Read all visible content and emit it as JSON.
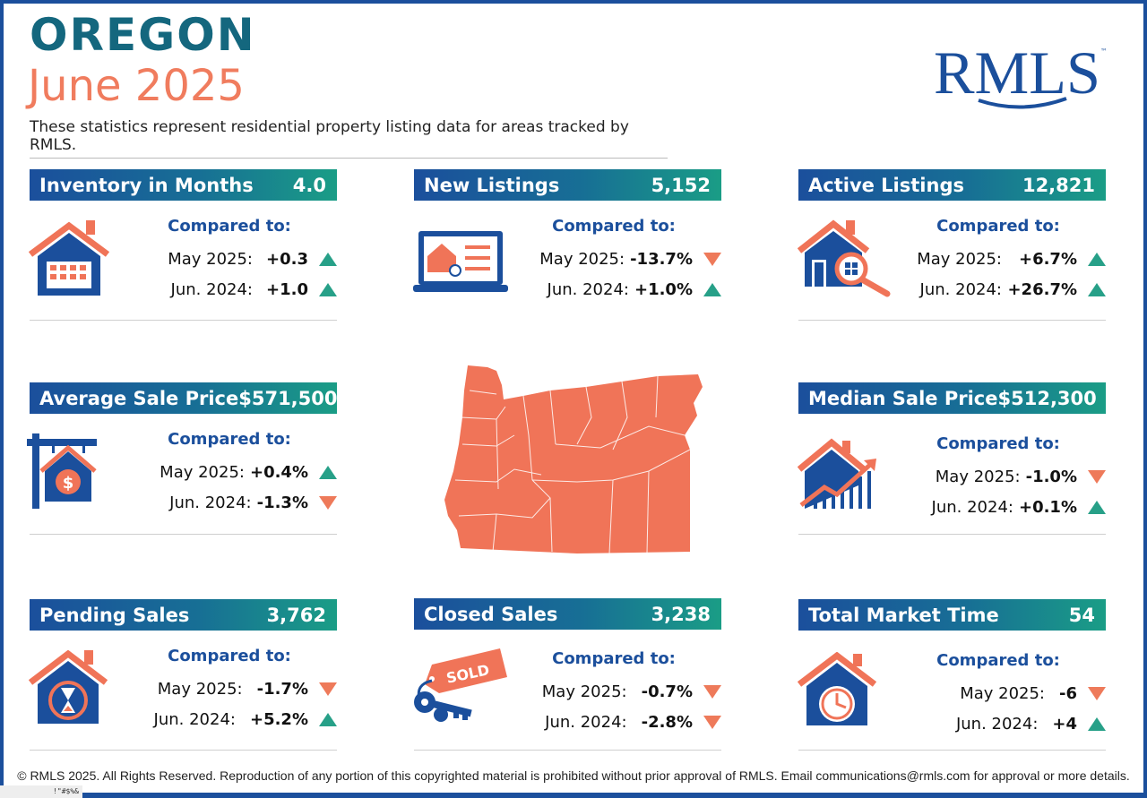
{
  "header": {
    "title": "OREGON",
    "subtitle": "June 2025",
    "description": "These statistics represent residential property listing data for areas tracked by RMLS.",
    "logo_text": "RMLS",
    "trademark": "™"
  },
  "compared_label": "Compared to:",
  "cards": {
    "inventory": {
      "label": "Inventory in Months",
      "value": "4.0",
      "icon": "house-calendar-icon",
      "rows": [
        {
          "period": "May 2025:",
          "change": "+0.3",
          "dir": "up"
        },
        {
          "period": "Jun. 2024:",
          "change": "+1.0",
          "dir": "up"
        }
      ]
    },
    "new_listings": {
      "label": "New Listings",
      "value": "5,152",
      "icon": "laptop-listing-icon",
      "rows": [
        {
          "period": "May 2025:",
          "change": "-13.7%",
          "dir": "down"
        },
        {
          "period": "Jun. 2024:",
          "change": "+1.0%",
          "dir": "up"
        }
      ]
    },
    "active_listings": {
      "label": "Active Listings",
      "value": "12,821",
      "icon": "house-magnifier-icon",
      "rows": [
        {
          "period": "May 2025:",
          "change": "+6.7%",
          "dir": "up"
        },
        {
          "period": "Jun. 2024:",
          "change": "+26.7%",
          "dir": "up"
        }
      ]
    },
    "average_sale_price": {
      "label": "Average Sale Price",
      "value": "$571,500",
      "icon": "sale-sign-icon",
      "rows": [
        {
          "period": "May 2025:",
          "change": "+0.4%",
          "dir": "up"
        },
        {
          "period": "Jun. 2024:",
          "change": "-1.3%",
          "dir": "down"
        }
      ]
    },
    "median_sale_price": {
      "label": "Median Sale Price",
      "value": "$512,300",
      "icon": "house-growth-chart-icon",
      "rows": [
        {
          "period": "May 2025:",
          "change": "-1.0%",
          "dir": "down"
        },
        {
          "period": "Jun. 2024:",
          "change": "+0.1%",
          "dir": "up"
        }
      ]
    },
    "pending_sales": {
      "label": "Pending Sales",
      "value": "3,762",
      "icon": "house-hourglass-icon",
      "rows": [
        {
          "period": "May 2025:",
          "change": "-1.7%",
          "dir": "down"
        },
        {
          "period": "Jun. 2024:",
          "change": "+5.2%",
          "dir": "up"
        }
      ]
    },
    "closed_sales": {
      "label": "Closed Sales",
      "value": "3,238",
      "icon": "sold-tag-keys-icon",
      "tag_text": "SOLD",
      "rows": [
        {
          "period": "May 2025:",
          "change": "-0.7%",
          "dir": "down"
        },
        {
          "period": "Jun. 2024:",
          "change": "-2.8%",
          "dir": "down"
        }
      ]
    },
    "total_market_time": {
      "label": "Total Market Time",
      "value": "54",
      "icon": "house-clock-icon",
      "rows": [
        {
          "period": "May 2025:",
          "change": "-6",
          "dir": "down"
        },
        {
          "period": "Jun. 2024:",
          "change": "+4",
          "dir": "up"
        }
      ]
    }
  },
  "map": {
    "icon": "oregon-county-map-icon",
    "color": "#f07458"
  },
  "colors": {
    "navy": "#1b4f9c",
    "teal": "#1a9d86",
    "coral": "#f07c5e",
    "up": "#27a088",
    "down": "#ee7a5a"
  },
  "footer": "© RMLS 2025. All Rights Reserved. Reproduction of any portion of this copyrighted material is prohibited without prior approval of RMLS. Email communications@rmls.com for approval or more details.",
  "corner_code": "!\"#$%&"
}
